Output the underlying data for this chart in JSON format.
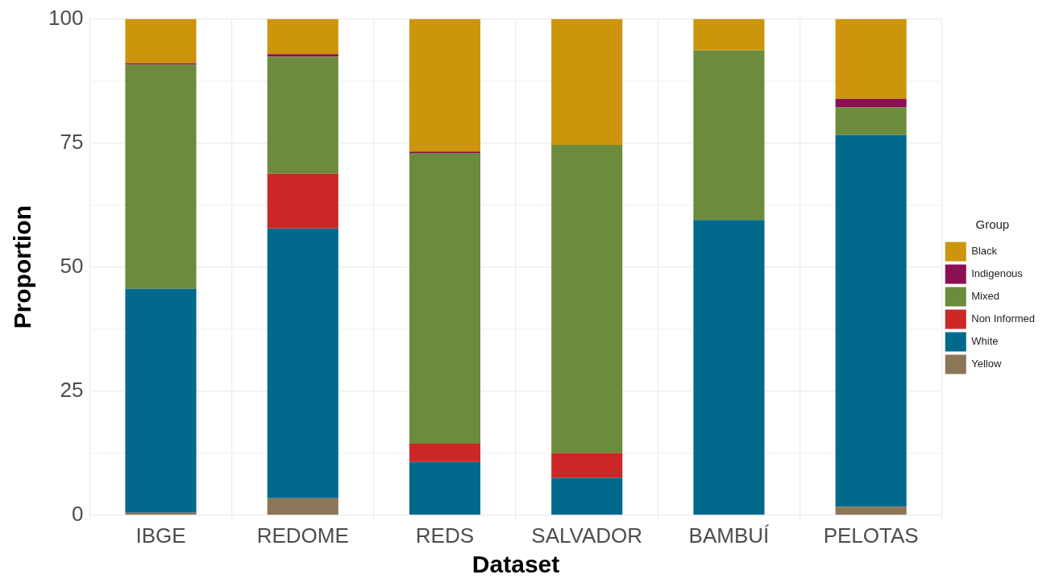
{
  "chart_data": {
    "type": "bar",
    "stacked": true,
    "xlabel": "Dataset",
    "ylabel": "Proportion",
    "legend_title": "Group",
    "legend": "right",
    "grid": true,
    "categories": [
      "IBGE",
      "REDOME",
      "REDS",
      "SALVADOR",
      "BAMBUÍ",
      "PELOTAS"
    ],
    "ylim": [
      0,
      100
    ],
    "yticks": [
      0,
      {
        "value": 12.5,
        "label": null
      },
      25,
      {
        "value": 37.5,
        "label": null
      },
      50,
      {
        "value": 62.5,
        "label": null
      },
      75,
      {
        "value": 87.5,
        "label": null
      },
      100
    ],
    "series": [
      {
        "name": "Yellow",
        "color": "#8b7657",
        "values": [
          0.5,
          3.4,
          0,
          0,
          0,
          1.7
        ]
      },
      {
        "name": "White",
        "color": "#00698c",
        "values": [
          45.1,
          54.4,
          10.7,
          7.5,
          59.5,
          74.9
        ]
      },
      {
        "name": "Non Informed",
        "color": "#cc2727",
        "values": [
          0,
          11.0,
          3.7,
          5.0,
          0,
          0
        ]
      },
      {
        "name": "Mixed",
        "color": "#6d8b3c",
        "values": [
          45.2,
          23.6,
          58.6,
          62.1,
          34.2,
          5.6
        ]
      },
      {
        "name": "Indigenous",
        "color": "#8b0f52",
        "values": [
          0.3,
          0.5,
          0.3,
          0,
          0,
          1.7
        ]
      },
      {
        "name": "Black",
        "color": "#cc950c",
        "values": [
          8.9,
          7.1,
          26.7,
          25.4,
          6.3,
          16.1
        ]
      }
    ]
  }
}
